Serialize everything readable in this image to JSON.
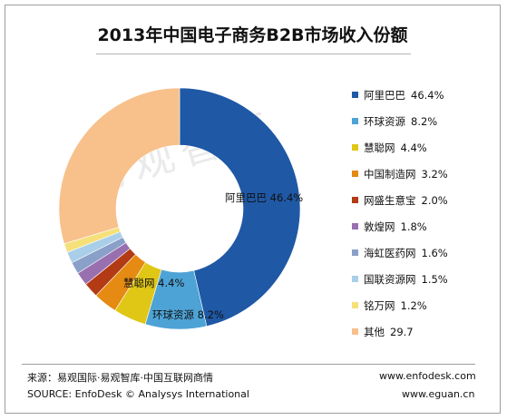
{
  "chart_data": {
    "type": "pie",
    "title": "2013年中国电子商务B2B市场收入份额",
    "categories": [
      "阿里巴巴",
      "环球资源",
      "慧聪网",
      "中国制造网",
      "网盛生意宝",
      "敦煌网",
      "海虹医药网",
      "国联资源网",
      "铭万网",
      "其他"
    ],
    "values": [
      46.4,
      8.2,
      4.4,
      3.2,
      2.0,
      1.8,
      1.6,
      1.5,
      1.2,
      29.7
    ],
    "value_labels": [
      "46.4%",
      "8.2%",
      "4.4%",
      "3.2%",
      "2.0%",
      "1.8%",
      "1.6%",
      "1.5%",
      "1.2%",
      "29.7"
    ],
    "colors": [
      "#1f58a5",
      "#4da3d6",
      "#e0c716",
      "#e58a12",
      "#b23a14",
      "#9a6fb0",
      "#8aa0c8",
      "#a9cfe8",
      "#f5e07a",
      "#f8c08a"
    ],
    "data_labels": [
      {
        "text": "阿里巴巴 46.4%"
      },
      {
        "text": "环球资源 8.2%"
      },
      {
        "text": "慧聪网 4.4%"
      }
    ],
    "donut": true,
    "legend_position": "right",
    "grid": false
  },
  "watermark": "易观智库",
  "footer": {
    "source_cn": "来源：易观国际·易观智库·中国互联网商情",
    "source_en": "SOURCE: EnfoDesk © Analysys International",
    "site1": "www.enfodesk.com",
    "site2": "www.eguan.cn"
  }
}
